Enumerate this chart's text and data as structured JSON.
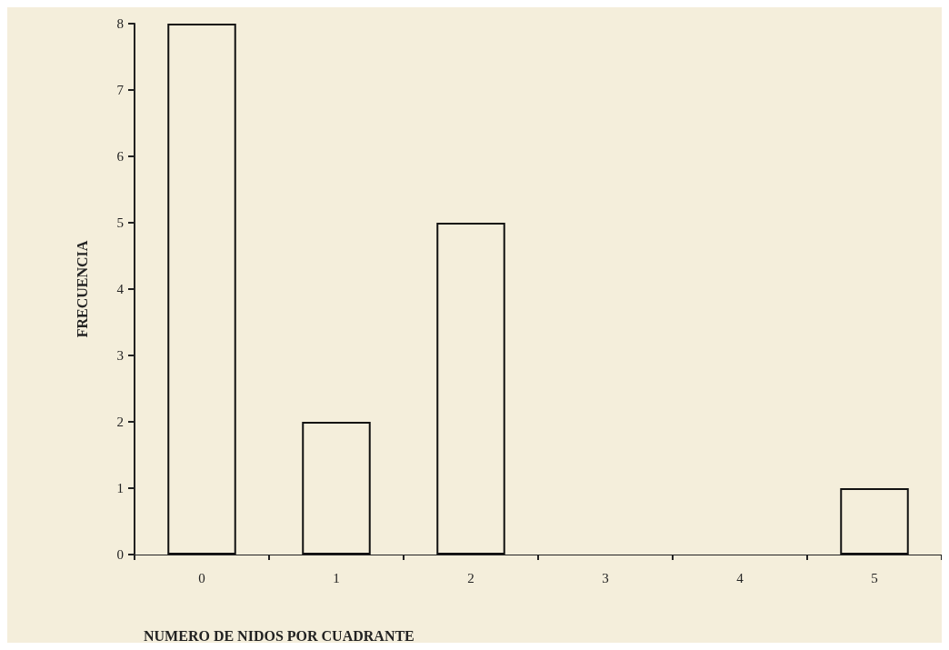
{
  "chart_data": {
    "type": "bar",
    "xlabel": "NUMERO DE NIDOS POR CUADRANTE",
    "ylabel": "FRECUENCIA",
    "categories": [
      "0",
      "1",
      "2",
      "3",
      "4",
      "5"
    ],
    "values": [
      8,
      2,
      5,
      0,
      0,
      1
    ],
    "color": "#f4eedb",
    "ylim": [
      0,
      8
    ],
    "yticks": [
      0,
      1,
      2,
      3,
      4,
      5,
      6,
      7,
      8
    ],
    "grid": false
  }
}
